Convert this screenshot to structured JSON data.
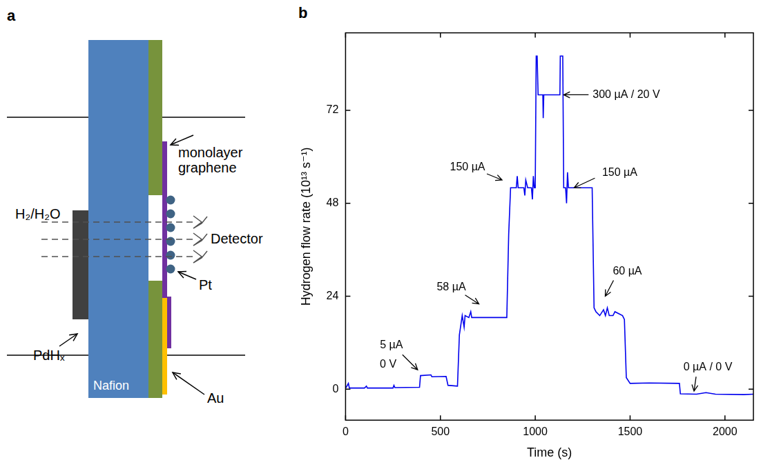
{
  "diagram": {
    "panel_label": "a",
    "labels": {
      "medium": "H₂/H₂O",
      "graphene": "monolayer graphene",
      "detector": "Detector",
      "pt": "Pt",
      "pdh": "PdHₓ",
      "nafion": "Nafion",
      "au": "Au"
    }
  },
  "chart_data": {
    "panel_label": "b",
    "type": "line",
    "x_label": "Time (s)",
    "y_label": "Hydrogen flow rate (10¹³ s⁻¹)",
    "color": "#0000ee",
    "grid": false,
    "xlim": [
      0,
      2150
    ],
    "ylim": [
      -8,
      92
    ],
    "xticks": [
      0,
      500,
      1000,
      1500,
      2000
    ],
    "yticks": [
      0,
      24,
      48,
      72
    ],
    "x": [
      0,
      15,
      20,
      100,
      110,
      115,
      250,
      255,
      260,
      390,
      395,
      450,
      455,
      530,
      540,
      590,
      600,
      615,
      625,
      630,
      650,
      660,
      665,
      850,
      860,
      870,
      900,
      905,
      910,
      940,
      945,
      950,
      960,
      980,
      985,
      990,
      995,
      1000,
      1005,
      1010,
      1015,
      1040,
      1042,
      1045,
      1130,
      1132,
      1145,
      1150,
      1160,
      1165,
      1170,
      1175,
      1300,
      1310,
      1320,
      1340,
      1360,
      1370,
      1380,
      1390,
      1410,
      1420,
      1440,
      1460,
      1470,
      1480,
      1500,
      1600,
      1760,
      1765,
      1850,
      1900,
      1950,
      2100,
      2150
    ],
    "values": [
      0.2,
      1.5,
      0.3,
      0.3,
      0.8,
      0.3,
      0.3,
      1.0,
      0.4,
      0.5,
      3.5,
      3.7,
      3.2,
      3.3,
      1.0,
      0.8,
      14,
      19,
      16,
      19,
      18.5,
      20,
      18.5,
      18.5,
      40,
      52,
      52,
      55,
      52,
      52,
      50,
      54,
      52,
      52,
      49,
      55,
      52,
      52,
      86,
      86,
      76,
      76,
      70,
      76,
      76,
      86,
      86,
      52,
      52,
      48,
      56,
      52,
      52,
      21,
      20,
      19,
      20.5,
      19,
      21,
      19,
      19,
      20,
      19.5,
      19,
      18,
      3,
      1.5,
      1.6,
      1.5,
      -1.2,
      -1.3,
      -0.9,
      -1.3,
      -1.4,
      -1.3
    ],
    "annotations": [
      {
        "text": "0 V",
        "x": 170,
        "y": 1
      },
      {
        "text": "5 µA",
        "x": 380,
        "y": 5
      },
      {
        "text": "58 µA",
        "x": 703,
        "y": 22
      },
      {
        "text": "150 µA",
        "x": 825,
        "y": 54
      },
      {
        "text": "300 µA / 20 V",
        "x": 1150,
        "y": 76
      },
      {
        "text": "150 µA",
        "x": 1205,
        "y": 52
      },
      {
        "text": "60 µA",
        "x": 1369,
        "y": 24
      },
      {
        "text": "0 µA / 0 V",
        "x": 1837,
        "y": -0.5
      }
    ]
  }
}
